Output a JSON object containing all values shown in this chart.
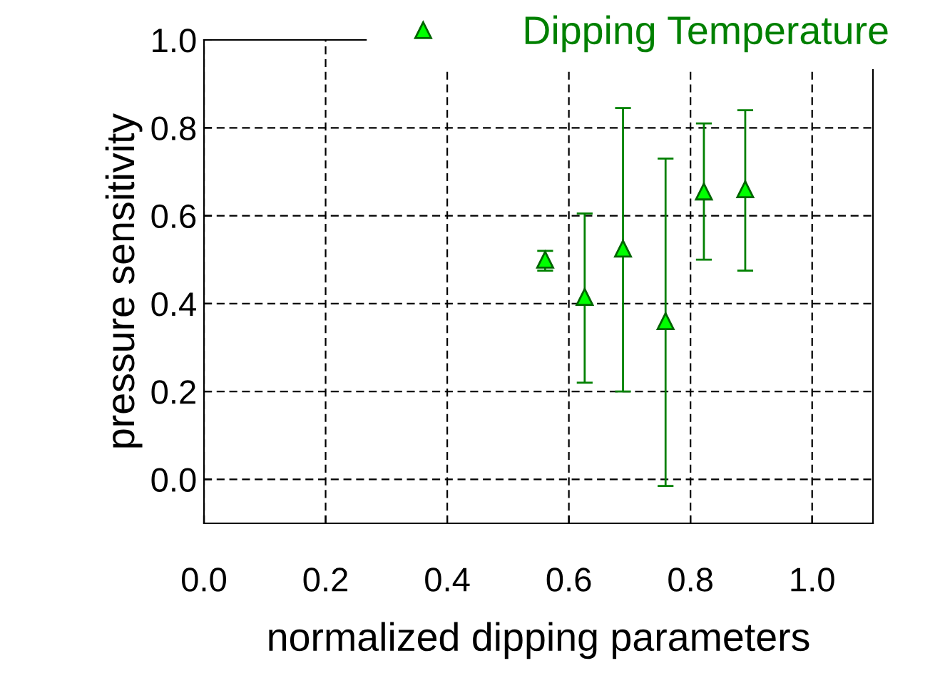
{
  "chart_data": {
    "type": "scatter",
    "xlabel": "normalized dipping parameters",
    "ylabel": "pressure sensitivity",
    "series": [
      {
        "name": "Dipping Temperature",
        "color": "#00ff00",
        "x": [
          0.561,
          0.626,
          0.689,
          0.759,
          0.822,
          0.89
        ],
        "values": [
          0.5,
          0.415,
          0.525,
          0.36,
          0.655,
          0.66
        ],
        "errors": [
          [
            0.475,
            0.52
          ],
          [
            0.22,
            0.605
          ],
          [
            0.2,
            0.845
          ],
          [
            -0.015,
            0.73
          ],
          [
            0.5,
            0.81
          ],
          [
            0.475,
            0.84
          ]
        ]
      }
    ],
    "xlim": [
      0,
      1.1
    ],
    "xticks": [
      {
        "value": 0,
        "label": "0.0"
      },
      0.2,
      0.4,
      0.6,
      0.8,
      {
        "value": 1,
        "label": "1.0"
      }
    ],
    "ylim": [
      -0.1,
      1.0
    ],
    "yticks": [
      {
        "value": 0,
        "label": "0.0"
      },
      0.2,
      0.4,
      0.6,
      0.8,
      {
        "value": 1,
        "label": "1.0"
      }
    ],
    "grid": true,
    "legend": "top right",
    "marker": "triangle"
  }
}
